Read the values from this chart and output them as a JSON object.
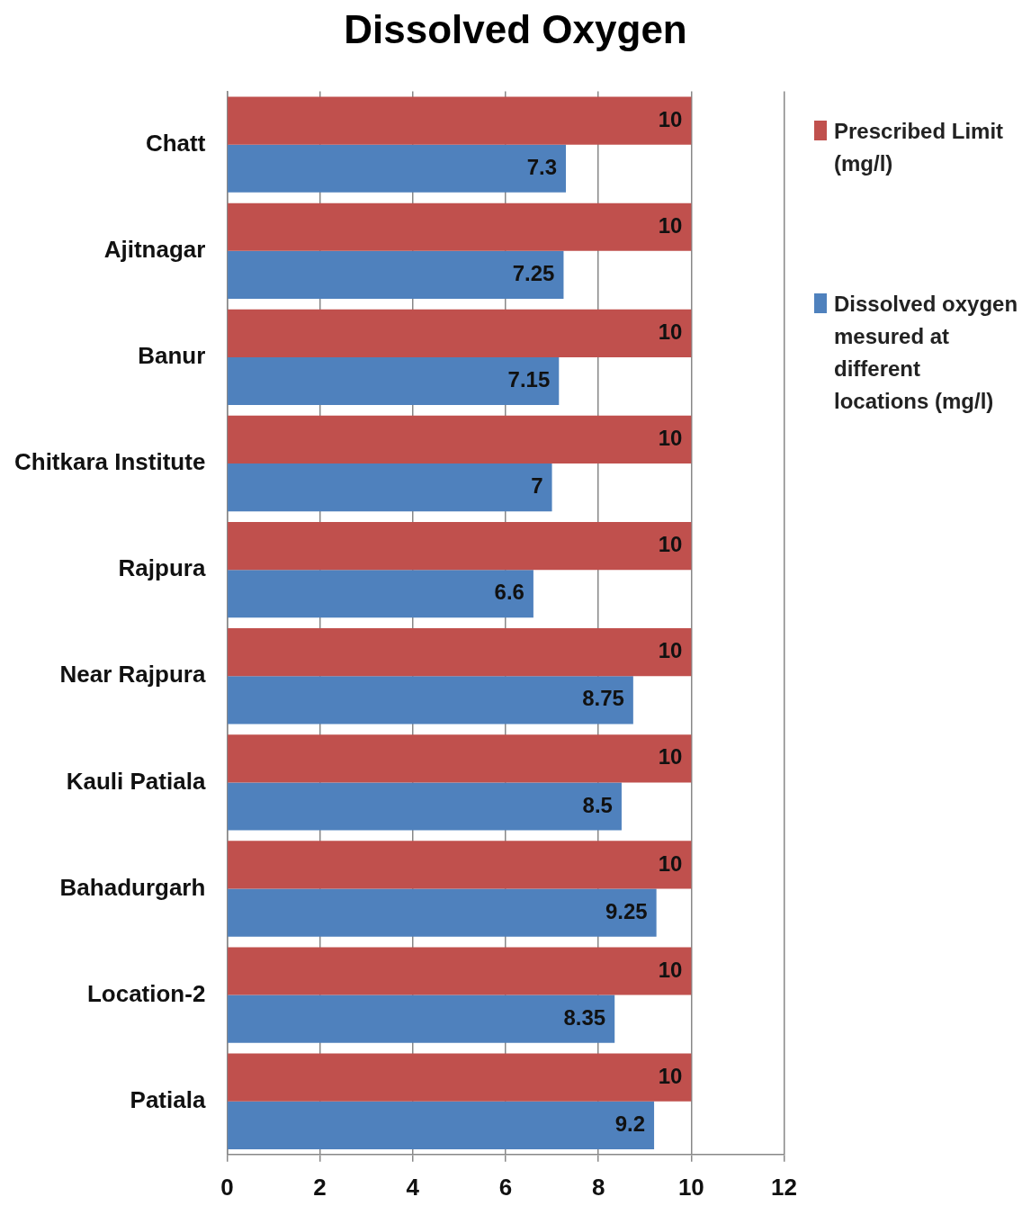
{
  "chart_data": {
    "type": "bar",
    "orientation": "horizontal",
    "title": "Dissolved Oxygen",
    "categories": [
      "Chatt",
      "Ajitnagar",
      "Banur",
      "Chitkara Institute",
      "Rajpura",
      "Near Rajpura",
      "Kauli Patiala",
      "Bahadurgarh",
      "Location-2",
      "Patiala"
    ],
    "series": [
      {
        "name": "Prescribed Limit (mg/l)",
        "color": "#c0504d",
        "values": [
          10,
          10,
          10,
          10,
          10,
          10,
          10,
          10,
          10,
          10
        ]
      },
      {
        "name": "Dissolved oxygen mesured at different locations (mg/l)",
        "color": "#4f81bd",
        "values": [
          7.3,
          7.25,
          7.15,
          7,
          6.6,
          8.75,
          8.5,
          9.25,
          8.35,
          9.2
        ]
      }
    ],
    "xlim": [
      0,
      12
    ],
    "xticks": [
      0,
      2,
      4,
      6,
      8,
      10,
      12
    ],
    "grid": "x",
    "legend": "top right",
    "data_labels": true
  }
}
